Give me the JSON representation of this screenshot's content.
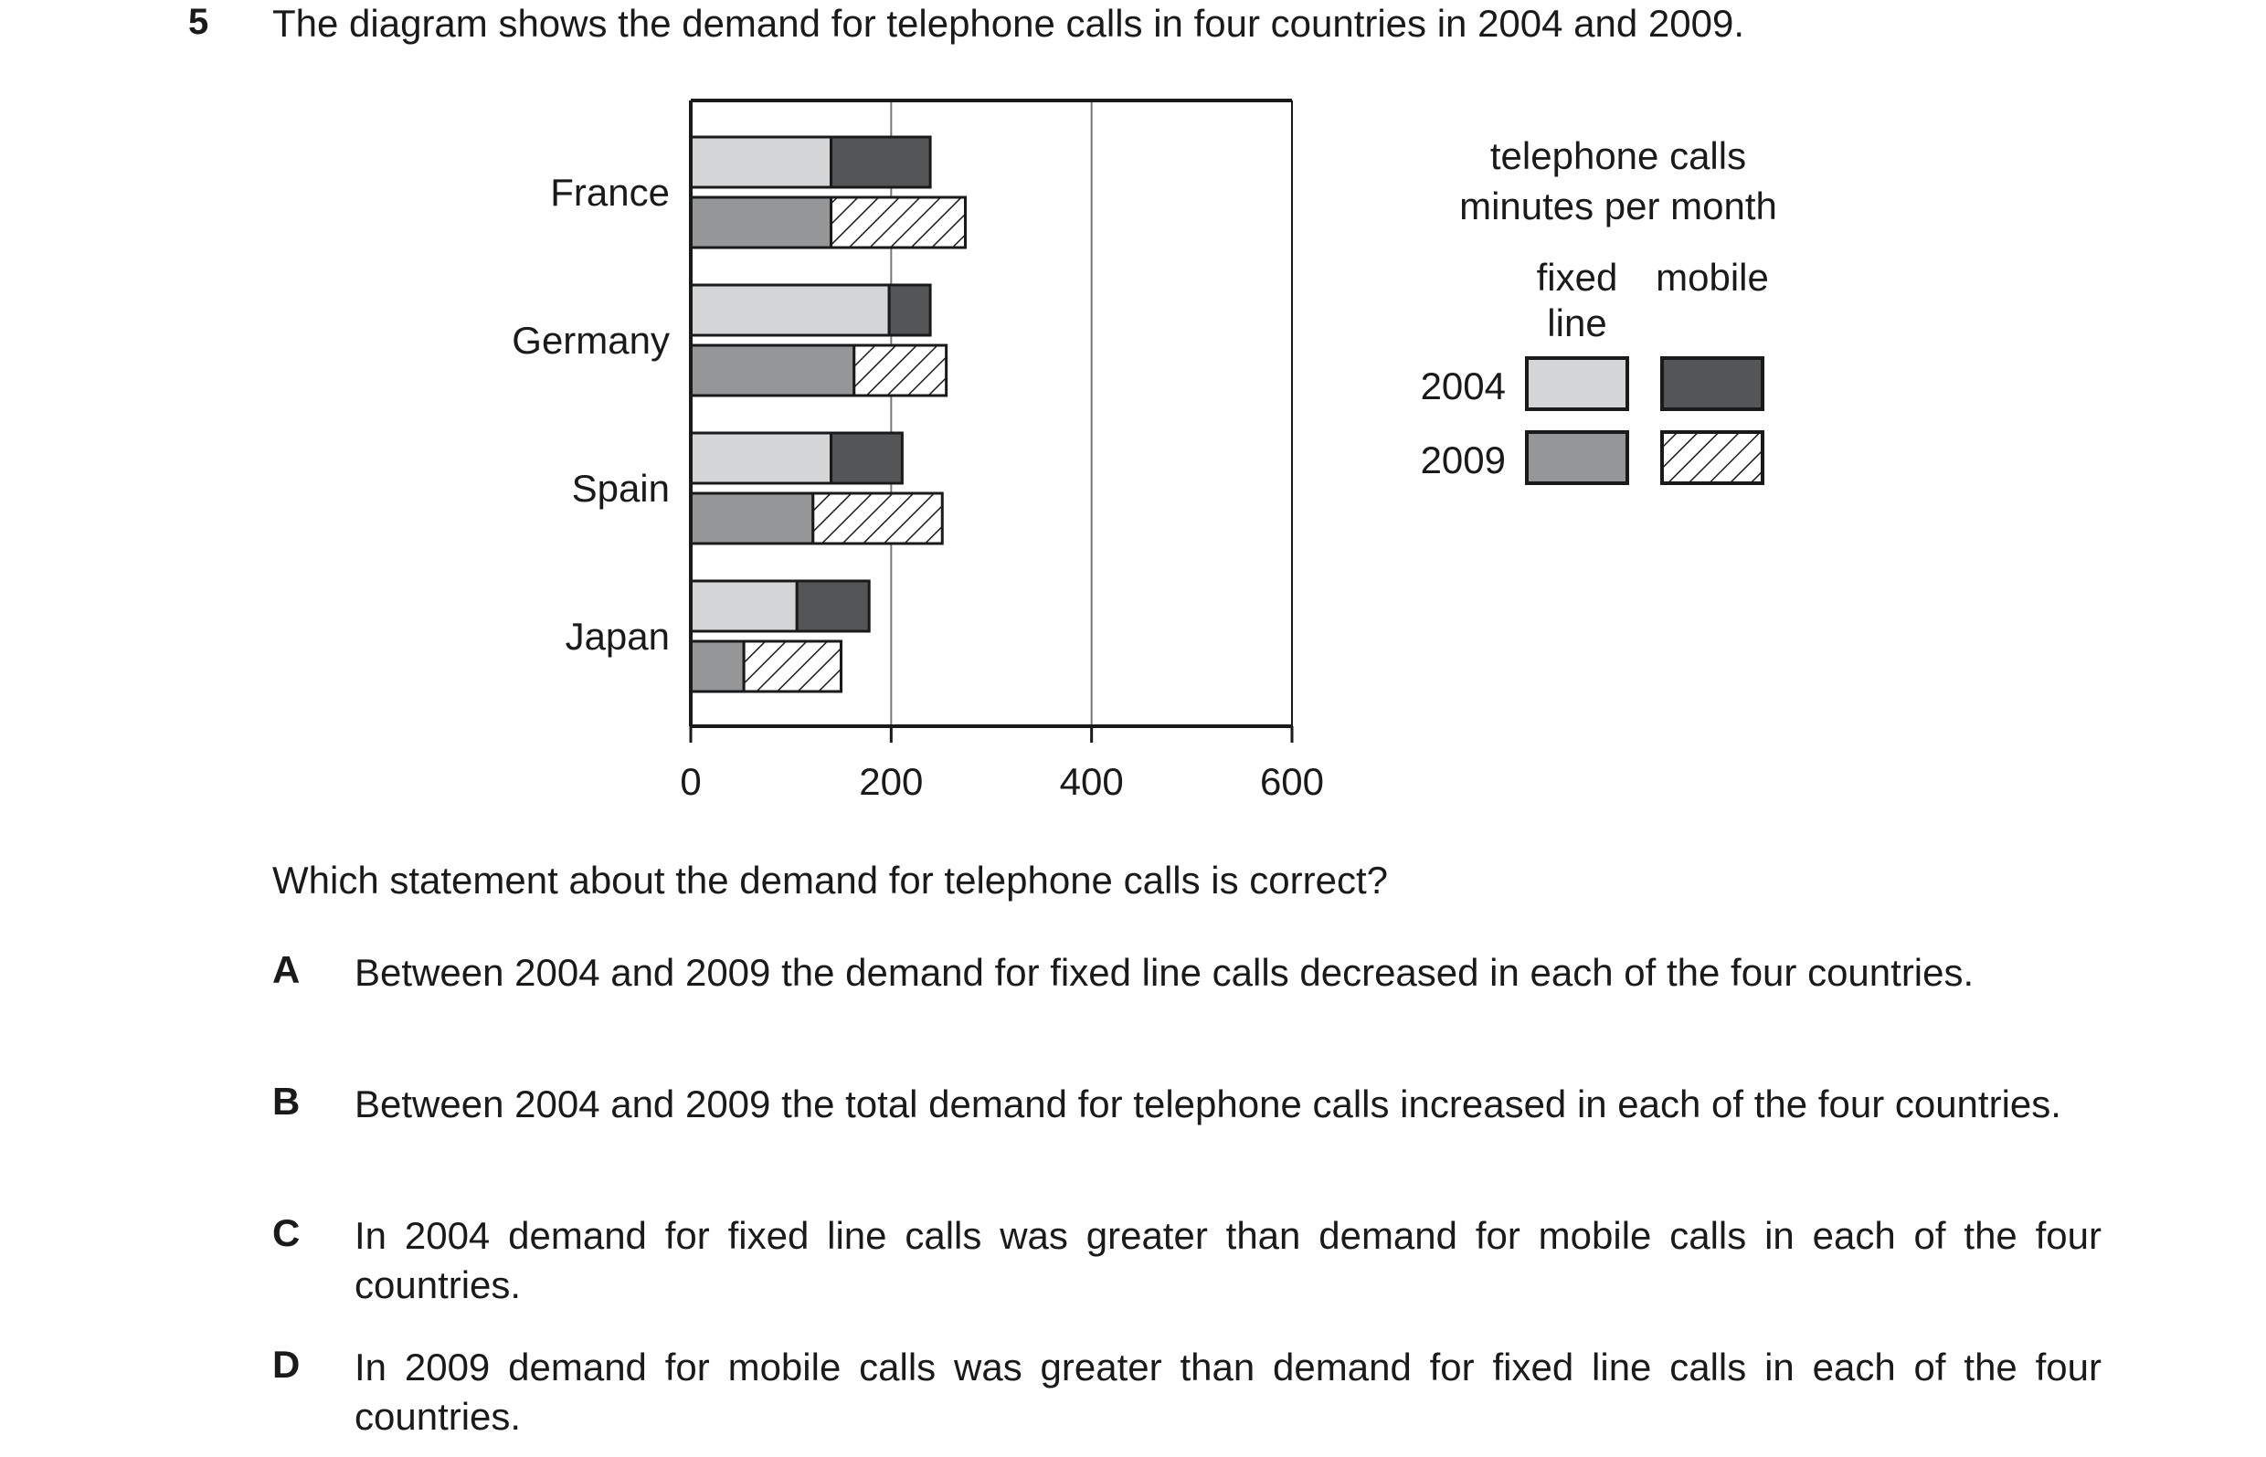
{
  "question": {
    "number": "5",
    "text": "The diagram shows the demand for telephone calls in four countries in 2004 and 2009.",
    "prompt": "Which statement about the demand for telephone calls is correct?"
  },
  "options": [
    {
      "letter": "A",
      "text": "Between 2004 and 2009 the demand for fixed line calls decreased in each of the four countries."
    },
    {
      "letter": "B",
      "text": "Between 2004 and 2009 the total demand for telephone calls increased in each of the four countries."
    },
    {
      "letter": "C",
      "text": "In 2004 demand for fixed line calls was greater than demand for mobile calls in each of the four countries."
    },
    {
      "letter": "D",
      "text": "In 2009 demand for mobile calls was greater than demand for fixed line calls in each of the four countries."
    }
  ],
  "chart_data": {
    "type": "bar",
    "orientation": "horizontal",
    "stacked": true,
    "categories": [
      "France",
      "Germany",
      "Spain",
      "Japan"
    ],
    "xlim": [
      0,
      600
    ],
    "xticks": [
      0,
      200,
      400,
      600
    ],
    "grid": "vertical",
    "legend": {
      "title_line1": "telephone calls",
      "title_line2": "minutes per month",
      "col_fixed_line1": "fixed",
      "col_fixed_line2": "line",
      "col_mobile": "mobile",
      "rows": [
        "2004",
        "2009"
      ],
      "placement": "right"
    },
    "series": [
      {
        "year": "2004",
        "type": "fixed line",
        "fill": "#d4d5d6",
        "pattern": "solid",
        "values": [
          140,
          198,
          140,
          106
        ]
      },
      {
        "year": "2004",
        "type": "mobile",
        "fill": "#545556",
        "pattern": "solid",
        "values": [
          99,
          41,
          71,
          72
        ]
      },
      {
        "year": "2009",
        "type": "fixed line",
        "fill": "#959697",
        "pattern": "solid",
        "values": [
          140,
          163,
          122,
          53
        ]
      },
      {
        "year": "2009",
        "type": "mobile",
        "fill": "#ffffff",
        "pattern": "hatch",
        "values": [
          134,
          92,
          129,
          97
        ]
      }
    ]
  }
}
